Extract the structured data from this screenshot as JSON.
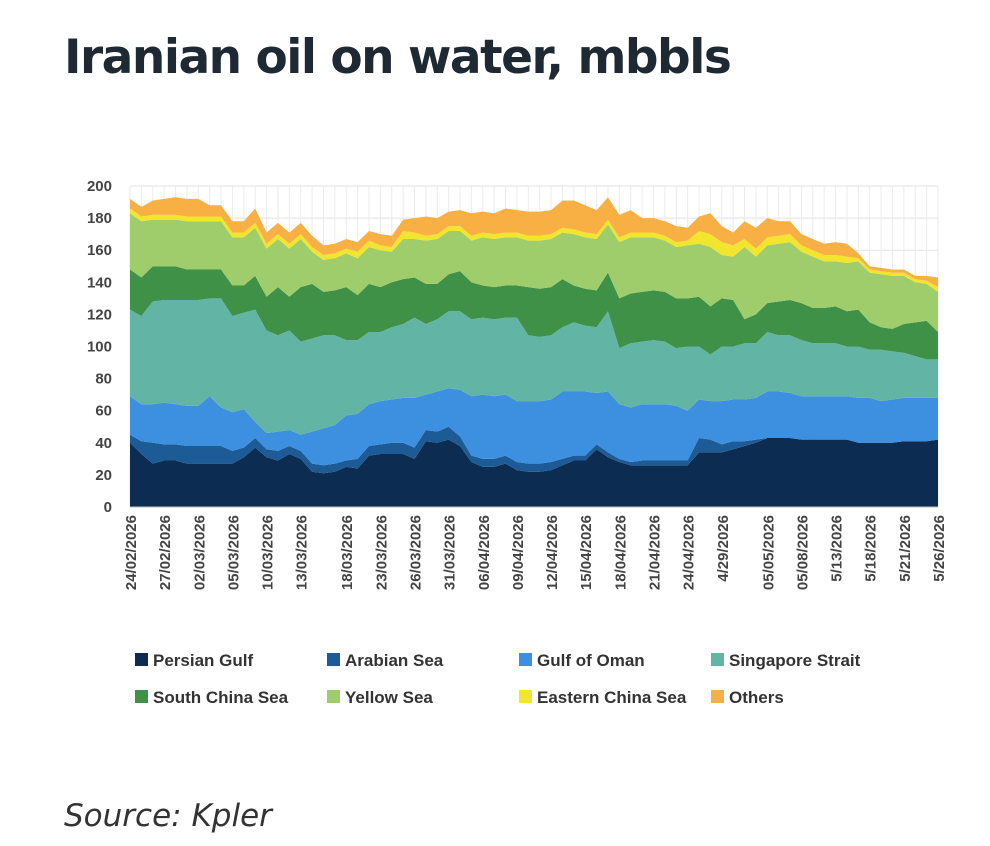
{
  "title": "Iranian oil on water, mbbls",
  "source": "Source: Kpler",
  "chart_data": {
    "type": "area",
    "stacked": true,
    "title": "Iranian oil on water, mbbls",
    "ylim": [
      0,
      200
    ],
    "yticks": [
      0,
      20,
      40,
      60,
      80,
      100,
      120,
      140,
      160,
      180,
      200
    ],
    "grid": true,
    "legend": "bottom",
    "x_tick_labels": [
      "24/02/2026",
      "27/02/2026",
      "02/03/2026",
      "05/03/2026",
      "10/03/2026",
      "13/03/2026",
      "18/03/2026",
      "23/03/2026",
      "26/03/2026",
      "31/03/2026",
      "06/04/2026",
      "09/04/2026",
      "12/04/2026",
      "15/04/2026",
      "18/04/2026",
      "21/04/2026",
      "24/04/2026",
      "4/29/2026",
      "05/05/2026",
      "05/08/2026",
      "5/13/2026",
      "5/18/2026",
      "5/21/2026",
      "5/26/2026"
    ],
    "x": [
      0,
      1,
      2,
      3,
      4,
      5,
      6,
      7,
      8,
      9,
      10,
      11,
      12,
      13,
      14,
      15,
      16,
      17,
      18,
      19,
      20,
      21,
      22,
      23,
      24,
      25,
      26,
      27,
      28,
      29,
      30,
      31,
      32,
      33,
      34,
      35,
      36,
      37,
      38,
      39,
      40,
      41,
      42,
      43,
      44,
      45,
      46,
      47,
      48,
      49,
      50,
      51,
      52,
      53,
      54,
      55,
      56,
      57,
      58,
      59,
      60,
      61,
      62,
      63,
      64,
      65,
      66,
      67,
      68,
      69,
      70,
      71
    ],
    "series": [
      {
        "name": "Persian Gulf",
        "color": "#0d2c52",
        "values": [
          40,
          33,
          27,
          29,
          29,
          27,
          27,
          27,
          27,
          27,
          31,
          37,
          31,
          29,
          33,
          30,
          22,
          21,
          22,
          25,
          24,
          32,
          33,
          33,
          33,
          30,
          41,
          40,
          42,
          38,
          28,
          25,
          25,
          27,
          23,
          22,
          22,
          23,
          26,
          29,
          29,
          36,
          31,
          28,
          26,
          26,
          26,
          26,
          26,
          26,
          34,
          34,
          34,
          36,
          38,
          40,
          43,
          43,
          43,
          42,
          42,
          42,
          42,
          42,
          40,
          40,
          40,
          40,
          41,
          41,
          41,
          42
        ]
      },
      {
        "name": "Arabian Sea",
        "color": "#1c5b95",
        "values": [
          5,
          8,
          13,
          10,
          10,
          11,
          11,
          11,
          11,
          8,
          6,
          6,
          5,
          6,
          5,
          5,
          5,
          5,
          5,
          4,
          6,
          6,
          6,
          7,
          7,
          7,
          7,
          7,
          8,
          6,
          4,
          5,
          5,
          5,
          5,
          5,
          5,
          5,
          4,
          3,
          3,
          3,
          3,
          2,
          2,
          3,
          3,
          3,
          3,
          3,
          9,
          8,
          5,
          5,
          3,
          2,
          0,
          0,
          0,
          0,
          0,
          0,
          0,
          0,
          0,
          0,
          0,
          0,
          0,
          0,
          0,
          0
        ]
      },
      {
        "name": "Gulf of Oman",
        "color": "#3d8fe0",
        "values": [
          24,
          23,
          24,
          26,
          25,
          25,
          25,
          31,
          24,
          24,
          24,
          10,
          10,
          12,
          10,
          10,
          20,
          23,
          24,
          28,
          28,
          26,
          27,
          27,
          28,
          31,
          22,
          25,
          24,
          29,
          37,
          40,
          39,
          38,
          38,
          39,
          39,
          39,
          42,
          40,
          40,
          32,
          38,
          34,
          34,
          35,
          35,
          35,
          34,
          31,
          24,
          24,
          27,
          26,
          26,
          26,
          29,
          29,
          28,
          27,
          27,
          27,
          27,
          27,
          28,
          28,
          26,
          27,
          27,
          27,
          27,
          26
        ]
      },
      {
        "name": "Singapore Strait",
        "color": "#62b5a4",
        "values": [
          54,
          55,
          64,
          64,
          65,
          66,
          66,
          61,
          68,
          60,
          60,
          70,
          64,
          60,
          62,
          58,
          58,
          58,
          56,
          47,
          46,
          45,
          43,
          45,
          46,
          50,
          44,
          45,
          48,
          49,
          48,
          48,
          48,
          48,
          52,
          41,
          40,
          40,
          40,
          43,
          41,
          41,
          50,
          35,
          40,
          39,
          40,
          39,
          36,
          40,
          33,
          29,
          34,
          33,
          35,
          34,
          37,
          35,
          36,
          35,
          33,
          33,
          33,
          31,
          32,
          30,
          32,
          30,
          28,
          26,
          24,
          24
        ]
      },
      {
        "name": "South China Sea",
        "color": "#3e9147",
        "values": [
          25,
          24,
          22,
          21,
          21,
          19,
          19,
          18,
          18,
          19,
          17,
          21,
          21,
          30,
          21,
          34,
          34,
          27,
          28,
          33,
          28,
          30,
          28,
          28,
          28,
          25,
          25,
          22,
          23,
          25,
          23,
          20,
          20,
          20,
          20,
          30,
          30,
          30,
          30,
          23,
          23,
          23,
          24,
          31,
          31,
          31,
          31,
          31,
          31,
          30,
          31,
          30,
          30,
          29,
          15,
          18,
          18,
          21,
          22,
          23,
          22,
          22,
          23,
          22,
          23,
          17,
          14,
          14,
          18,
          21,
          24,
          17
        ]
      },
      {
        "name": "Yellow Sea",
        "color": "#9fcd6c",
        "values": [
          35,
          35,
          29,
          29,
          29,
          30,
          30,
          30,
          30,
          30,
          30,
          30,
          30,
          30,
          30,
          30,
          20,
          20,
          20,
          21,
          23,
          23,
          23,
          19,
          25,
          24,
          27,
          28,
          27,
          25,
          26,
          30,
          30,
          30,
          30,
          29,
          30,
          30,
          29,
          32,
          32,
          32,
          30,
          35,
          35,
          34,
          33,
          32,
          32,
          33,
          33,
          37,
          27,
          27,
          45,
          36,
          36,
          36,
          36,
          32,
          32,
          29,
          28,
          30,
          30,
          31,
          33,
          33,
          30,
          25,
          23,
          25
        ]
      },
      {
        "name": "Eastern China Sea",
        "color": "#f2e52e",
        "values": [
          3,
          3,
          3,
          3,
          3,
          3,
          3,
          3,
          3,
          3,
          3,
          3,
          3,
          3,
          3,
          3,
          3,
          3,
          3,
          3,
          4,
          4,
          3,
          3,
          5,
          4,
          3,
          3,
          3,
          3,
          3,
          3,
          3,
          3,
          3,
          3,
          3,
          3,
          3,
          3,
          3,
          3,
          3,
          3,
          3,
          3,
          3,
          3,
          3,
          3,
          8,
          8,
          8,
          7,
          5,
          5,
          5,
          5,
          5,
          4,
          4,
          4,
          4,
          4,
          2,
          2,
          2,
          2,
          2,
          2,
          2,
          3
        ]
      },
      {
        "name": "Others",
        "color": "#f8b045",
        "values": [
          6,
          6,
          9,
          10,
          11,
          11,
          11,
          7,
          7,
          7,
          7,
          9,
          7,
          7,
          7,
          7,
          7,
          6,
          6,
          6,
          6,
          6,
          7,
          7,
          7,
          9,
          12,
          10,
          9,
          10,
          14,
          13,
          13,
          15,
          14,
          15,
          15,
          15,
          17,
          18,
          17,
          15,
          14,
          14,
          14,
          9,
          9,
          9,
          10,
          8,
          9,
          13,
          10,
          8,
          11,
          13,
          12,
          9,
          8,
          7,
          7,
          7,
          8,
          8,
          3,
          2,
          2,
          2,
          2,
          2,
          3,
          6
        ]
      }
    ]
  }
}
